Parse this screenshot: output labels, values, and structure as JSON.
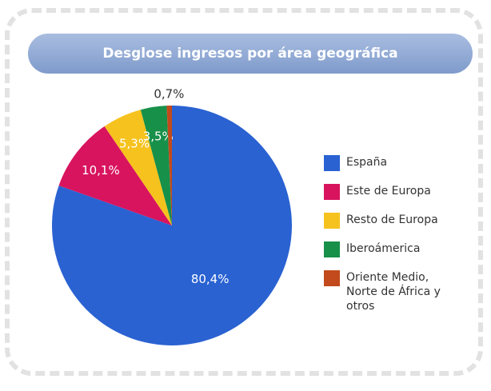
{
  "chart_data": {
    "type": "pie",
    "title": "Desglose ingresos por área geográfica",
    "categories": [
      "España",
      "Este de Europa",
      "Resto de Europa",
      "Iberoámerica",
      "Oriente Medio, Norte de África y otros"
    ],
    "values": [
      80.4,
      10.1,
      5.3,
      3.5,
      0.7
    ],
    "value_labels": [
      "80,4%",
      "10,1%",
      "5,3%",
      "3,5%",
      "0,7%"
    ],
    "colors": [
      "#2a62d2",
      "#d8145f",
      "#f6c21d",
      "#17904a",
      "#c24a1c"
    ],
    "legend": "right"
  }
}
